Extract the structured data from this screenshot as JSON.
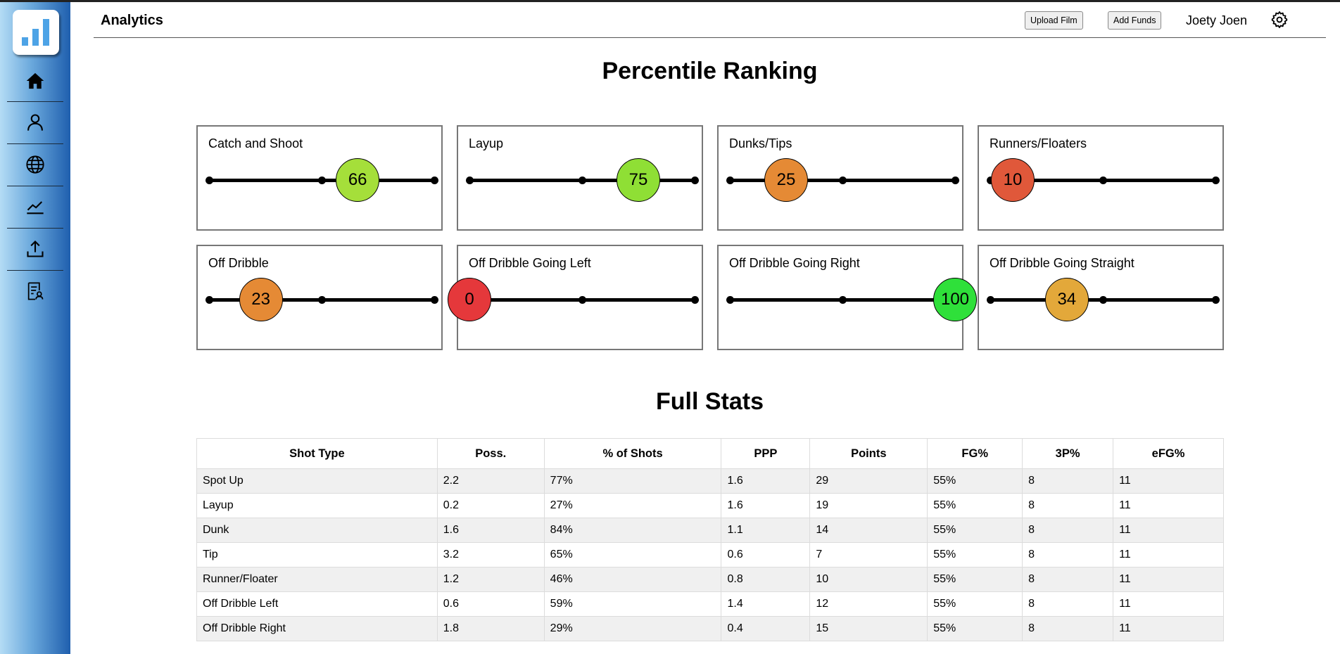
{
  "header": {
    "title": "Analytics",
    "upload_label": "Upload Film",
    "funds_label": "Add Funds",
    "user_name": "Joety Joen"
  },
  "sidebar": {
    "items": [
      {
        "name": "home",
        "icon": "home-icon"
      },
      {
        "name": "profile",
        "icon": "user-icon"
      },
      {
        "name": "global",
        "icon": "globe-icon"
      },
      {
        "name": "analytics",
        "icon": "chart-line-icon"
      },
      {
        "name": "upload",
        "icon": "upload-icon"
      },
      {
        "name": "reports",
        "icon": "report-icon"
      }
    ]
  },
  "percentile": {
    "title": "Percentile Ranking",
    "cards": [
      {
        "label": "Catch and Shoot",
        "value": 66,
        "color": "#a5df3a"
      },
      {
        "label": "Layup",
        "value": 75,
        "color": "#8fdf35"
      },
      {
        "label": "Dunks/Tips",
        "value": 25,
        "color": "#e58a35"
      },
      {
        "label": "Runners/Floaters",
        "value": 10,
        "color": "#e0583a"
      },
      {
        "label": "Off Dribble",
        "value": 23,
        "color": "#e58a35"
      },
      {
        "label": "Off Dribble Going Left",
        "value": 0,
        "color": "#e5383b"
      },
      {
        "label": "Off Dribble Going Right",
        "value": 100,
        "color": "#2fe03a"
      },
      {
        "label": "Off Dribble Going Straight",
        "value": 34,
        "color": "#e3a83a"
      }
    ]
  },
  "stats": {
    "title": "Full Stats",
    "columns": [
      "Shot Type",
      "Poss.",
      "% of Shots",
      "PPP",
      "Points",
      "FG%",
      "3P%",
      "eFG%"
    ],
    "rows": [
      [
        "Spot Up",
        "2.2",
        "77%",
        "1.6",
        "29",
        "55%",
        "8",
        "11"
      ],
      [
        "Layup",
        "0.2",
        "27%",
        "1.6",
        "19",
        "55%",
        "8",
        "11"
      ],
      [
        "Dunk",
        "1.6",
        "84%",
        "1.1",
        "14",
        "55%",
        "8",
        "11"
      ],
      [
        "Tip",
        "3.2",
        "65%",
        "0.6",
        "7",
        "55%",
        "8",
        "11"
      ],
      [
        "Runner/Floater",
        "1.2",
        "46%",
        "0.8",
        "10",
        "55%",
        "8",
        "11"
      ],
      [
        "Off Dribble Left",
        "0.6",
        "59%",
        "1.4",
        "12",
        "55%",
        "8",
        "11"
      ],
      [
        "Off Dribble Right",
        "1.8",
        "29%",
        "0.4",
        "15",
        "55%",
        "8",
        "11"
      ]
    ]
  }
}
